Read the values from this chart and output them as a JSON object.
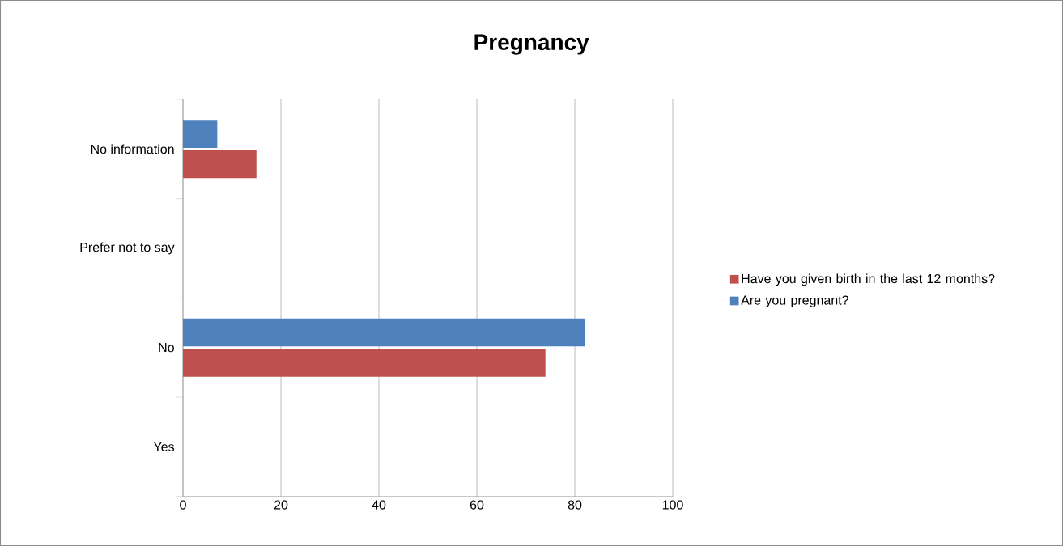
{
  "chart_data": {
    "type": "bar",
    "orientation": "horizontal",
    "title": "Pregnancy",
    "categories": [
      "No information",
      "Prefer not to say",
      "No",
      "Yes"
    ],
    "series": [
      {
        "name": "Have you given birth in the last 12 months?",
        "color": "#c0504d",
        "values": [
          15,
          0,
          74,
          0
        ]
      },
      {
        "name": "Are you pregnant?",
        "color": "#4f81bd",
        "values": [
          7,
          0,
          82,
          0
        ]
      }
    ],
    "xlim": [
      0,
      100
    ],
    "xticks": [
      0,
      20,
      40,
      60,
      80,
      100
    ],
    "grid": "x",
    "legend": "right"
  }
}
